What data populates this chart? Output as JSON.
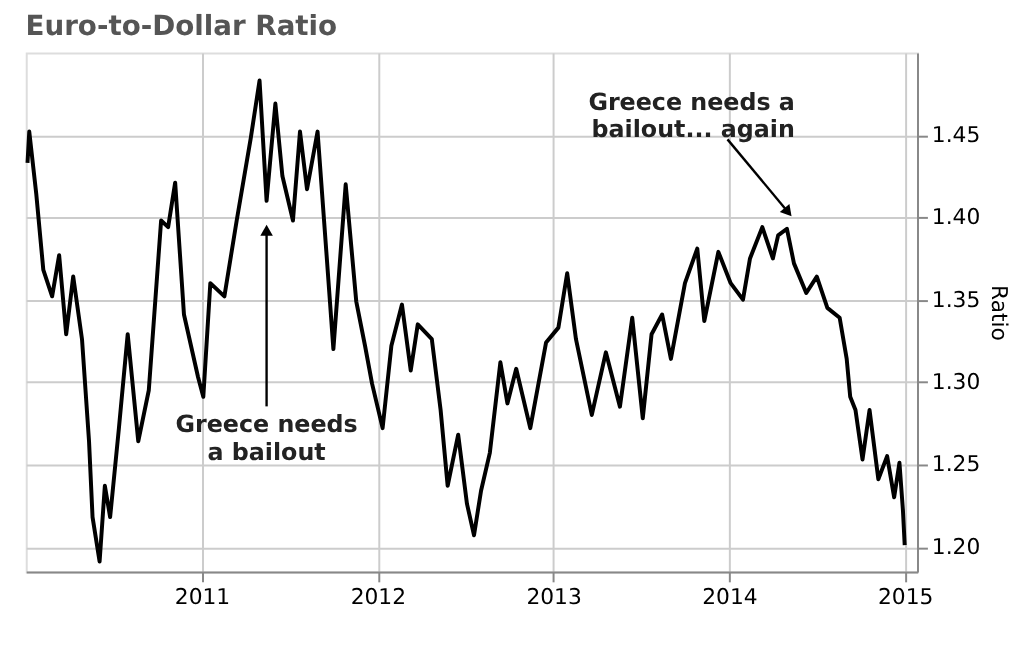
{
  "chart_data": {
    "type": "line",
    "title": "Euro-to-Dollar Ratio",
    "ylabel": "Ratio",
    "x": [
      2010.01,
      2010.02,
      2010.06,
      2010.1,
      2010.15,
      2010.19,
      2010.23,
      2010.27,
      2010.32,
      2010.36,
      2010.38,
      2010.42,
      2010.45,
      2010.48,
      2010.53,
      2010.58,
      2010.64,
      2010.7,
      2010.77,
      2010.81,
      2010.85,
      2010.9,
      2010.98,
      2011.01,
      2011.05,
      2011.13,
      2011.2,
      2011.28,
      2011.33,
      2011.37,
      2011.42,
      2011.46,
      2011.52,
      2011.56,
      2011.6,
      2011.66,
      2011.71,
      2011.75,
      2011.82,
      2011.88,
      2011.93,
      2011.97,
      2012.03,
      2012.08,
      2012.14,
      2012.19,
      2012.23,
      2012.31,
      2012.36,
      2012.4,
      2012.46,
      2012.51,
      2012.55,
      2012.59,
      2012.64,
      2012.7,
      2012.74,
      2012.79,
      2012.87,
      2012.96,
      2013.03,
      2013.08,
      2013.13,
      2013.22,
      2013.3,
      2013.38,
      2013.45,
      2013.51,
      2013.56,
      2013.62,
      2013.67,
      2013.75,
      2013.82,
      2013.86,
      2013.94,
      2014.01,
      2014.08,
      2014.12,
      2014.19,
      2014.25,
      2014.28,
      2014.33,
      2014.37,
      2014.44,
      2014.5,
      2014.56,
      2014.63,
      2014.67,
      2014.69,
      2014.72,
      2014.76,
      2014.8,
      2014.85,
      2014.9,
      2014.94,
      2014.97,
      2014.99,
      2015.0
    ],
    "series": [
      {
        "color": "#000000",
        "values": [
          1.433,
          1.452,
          1.414,
          1.368,
          1.352,
          1.377,
          1.329,
          1.364,
          1.326,
          1.264,
          1.218,
          1.191,
          1.237,
          1.218,
          1.272,
          1.329,
          1.264,
          1.295,
          1.398,
          1.394,
          1.421,
          1.341,
          1.303,
          1.291,
          1.36,
          1.352,
          1.398,
          1.448,
          1.483,
          1.41,
          1.469,
          1.425,
          1.398,
          1.452,
          1.417,
          1.452,
          1.379,
          1.32,
          1.42,
          1.349,
          1.322,
          1.299,
          1.272,
          1.322,
          1.347,
          1.307,
          1.335,
          1.326,
          1.283,
          1.237,
          1.268,
          1.226,
          1.207,
          1.234,
          1.257,
          1.312,
          1.287,
          1.308,
          1.272,
          1.324,
          1.333,
          1.366,
          1.326,
          1.28,
          1.318,
          1.285,
          1.339,
          1.278,
          1.329,
          1.341,
          1.314,
          1.36,
          1.381,
          1.337,
          1.379,
          1.36,
          1.35,
          1.375,
          1.394,
          1.375,
          1.389,
          1.393,
          1.372,
          1.354,
          1.364,
          1.345,
          1.339,
          1.314,
          1.291,
          1.283,
          1.253,
          1.283,
          1.241,
          1.255,
          1.23,
          1.251,
          1.222,
          1.201
        ]
      }
    ],
    "xlim": [
      2010.0,
      2015.07
    ],
    "ylim": [
      1.185,
      1.5
    ],
    "xticks": [
      2011,
      2012,
      2013,
      2014,
      2015
    ],
    "yticks": [
      {
        "value": 1.2,
        "label": "1.20"
      },
      {
        "value": 1.25,
        "label": "1.25"
      },
      {
        "value": 1.3,
        "label": "1.30"
      },
      {
        "value": 1.35,
        "label": "1.35"
      },
      {
        "value": 1.4,
        "label": "1.40"
      },
      {
        "value": 1.45,
        "label": "1.45"
      }
    ],
    "grid": true,
    "marker": "none",
    "line_style": "solid",
    "annotations": [
      {
        "text": "Greece needs\na bailout",
        "x": 2011.37,
        "y": 1.391
      },
      {
        "text": "Greece needs a\nbailout... again",
        "x": 2014.33,
        "y": 1.404
      }
    ]
  }
}
